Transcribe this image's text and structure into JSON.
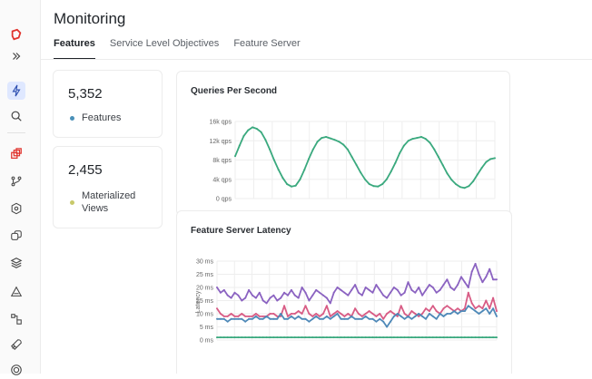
{
  "page": {
    "title": "Monitoring"
  },
  "tabs": [
    {
      "label": "Features",
      "active": true
    },
    {
      "label": "Service Level Objectives",
      "active": false
    },
    {
      "label": "Feature Server",
      "active": false
    }
  ],
  "sidebar": {
    "icons": [
      "logo-icon",
      "expand-icon",
      "lightning-icon",
      "search-icon",
      "feature-views-icon",
      "branch-icon",
      "settings-hex-icon",
      "duplicate-icon",
      "layers-icon",
      "triangle-icon",
      "graph-icon",
      "rocket-icon",
      "target-icon"
    ]
  },
  "stats": [
    {
      "value": "5,352",
      "label": "Features",
      "color": "#4a90b8"
    },
    {
      "value": "2,455",
      "label": "Materialized Views",
      "color": "#c8c96a"
    }
  ],
  "colors": {
    "green": "#3aa97e",
    "purple": "#8b63c1",
    "pink": "#d85c85",
    "blue": "#4f89b8"
  },
  "chart_data": [
    {
      "type": "line",
      "title": "Queries Per Second",
      "ylim": [
        0,
        16000
      ],
      "yticks": [
        "0 qps",
        "4k qps",
        "8k qps",
        "12k qps",
        "16k qps"
      ],
      "ytick_values": [
        0,
        4000,
        8000,
        12000,
        16000
      ],
      "x": [
        0,
        1,
        2,
        3,
        4,
        5,
        6,
        7,
        8,
        9,
        10,
        11,
        12,
        13,
        14,
        15,
        16,
        17,
        18,
        19,
        20,
        21,
        22,
        23,
        24,
        25,
        26,
        27,
        28,
        29,
        30,
        31,
        32,
        33,
        34,
        35,
        36,
        37,
        38,
        39,
        40,
        41,
        42,
        43,
        44,
        45,
        46,
        47,
        48,
        49,
        50,
        51,
        52,
        53,
        54,
        55,
        56,
        57,
        58,
        59,
        60
      ],
      "series": [
        {
          "values": [
            8800,
            11000,
            13000,
            14200,
            14800,
            14500,
            13800,
            12200,
            10200,
            8000,
            6000,
            4300,
            3000,
            2500,
            2700,
            4000,
            6000,
            8200,
            10200,
            11800,
            12600,
            12800,
            12500,
            12200,
            11800,
            11200,
            10200,
            8600,
            7000,
            5400,
            4000,
            3000,
            2600,
            2500,
            3000,
            4000,
            5600,
            7400,
            9400,
            11000,
            12000,
            12400,
            12600,
            12800,
            12400,
            11600,
            10200,
            8600,
            6900,
            5200,
            3900,
            3000,
            2400,
            2200,
            2600,
            3600,
            5000,
            6400,
            7600,
            8200,
            8400
          ]
        }
      ]
    },
    {
      "type": "line",
      "title": "Feature Server Latency",
      "ylabel": "Latency",
      "ylim": [
        0,
        30
      ],
      "yticks": [
        "0 ms",
        "5 ms",
        "10 ms",
        "15 ms",
        "20 ms",
        "25 ms",
        "30 ms"
      ],
      "ytick_values": [
        0,
        5,
        10,
        15,
        20,
        25,
        30
      ],
      "x": [
        0,
        1,
        2,
        3,
        4,
        5,
        6,
        7,
        8,
        9,
        10,
        11,
        12,
        13,
        14,
        15,
        16,
        17,
        18,
        19,
        20,
        21,
        22,
        23,
        24,
        25,
        26,
        27,
        28,
        29,
        30,
        31,
        32,
        33,
        34,
        35,
        36,
        37,
        38,
        39,
        40,
        41,
        42,
        43,
        44,
        45,
        46,
        47,
        48,
        49,
        50,
        51,
        52,
        53,
        54,
        55,
        56,
        57,
        58,
        59,
        60,
        61,
        62,
        63,
        64,
        65,
        66,
        67,
        68,
        69,
        70,
        71,
        72,
        73,
        74,
        75,
        76,
        77,
        78,
        79
      ],
      "series": [
        {
          "color": "#8b63c1",
          "values": [
            20,
            18,
            19,
            17,
            16,
            18,
            17,
            15,
            16,
            19,
            17,
            16,
            18,
            15,
            14,
            16,
            17,
            15,
            16,
            18,
            17,
            19,
            17,
            16,
            20,
            18,
            15,
            17,
            19,
            18,
            17,
            16,
            14,
            18,
            20,
            19,
            18,
            17,
            19,
            21,
            18,
            17,
            20,
            19,
            18,
            21,
            19,
            17,
            16,
            18,
            20,
            19,
            17,
            18,
            22,
            19,
            18,
            20,
            17,
            19,
            21,
            20,
            18,
            19,
            21,
            23,
            20,
            19,
            21,
            24,
            22,
            20,
            26,
            29,
            25,
            22,
            24,
            27,
            23,
            23
          ]
        },
        {
          "color": "#d85c85",
          "values": [
            12,
            10,
            9,
            9,
            10,
            9,
            9,
            10,
            9,
            9,
            9,
            10,
            9,
            9,
            9,
            10,
            10,
            9,
            9,
            13,
            9,
            10,
            10,
            11,
            10,
            13,
            10,
            9,
            10,
            9,
            10,
            13,
            9,
            10,
            11,
            10,
            9,
            10,
            9,
            12,
            10,
            9,
            10,
            11,
            10,
            9,
            10,
            8,
            10,
            11,
            10,
            9,
            13,
            10,
            9,
            11,
            10,
            9,
            10,
            12,
            11,
            13,
            11,
            10,
            12,
            13,
            12,
            11,
            12,
            11,
            12,
            18,
            14,
            12,
            13,
            12,
            15,
            12,
            16,
            11
          ]
        },
        {
          "color": "#4f89b8",
          "values": [
            8,
            8,
            8,
            7,
            8,
            8,
            8,
            8,
            7,
            8,
            8,
            9,
            8,
            8,
            9,
            8,
            8,
            8,
            10,
            8,
            8,
            9,
            8,
            9,
            8,
            8,
            7,
            8,
            9,
            8,
            8,
            9,
            8,
            9,
            10,
            8,
            8,
            8,
            9,
            8,
            8,
            8,
            9,
            8,
            8,
            7,
            8,
            7,
            5,
            7,
            9,
            10,
            9,
            8,
            9,
            8,
            9,
            10,
            9,
            8,
            10,
            9,
            8,
            10,
            9,
            10,
            10,
            11,
            10,
            11,
            11,
            13,
            12,
            11,
            10,
            11,
            12,
            10,
            12,
            9
          ]
        },
        {
          "color": "#3aa97e",
          "values": [
            1,
            1,
            1,
            1,
            1,
            1,
            1,
            1,
            1,
            1,
            1,
            1,
            1,
            1,
            1,
            1,
            1,
            1,
            1,
            1,
            1,
            1,
            1,
            1,
            1,
            1,
            1,
            1,
            1,
            1,
            1,
            1,
            1,
            1,
            1,
            1,
            1,
            1,
            1,
            1,
            1,
            1,
            1,
            1,
            1,
            1,
            1,
            1,
            1,
            1,
            1,
            1,
            1,
            1,
            1,
            1,
            1,
            1,
            1,
            1,
            1,
            1,
            1,
            1,
            1,
            1,
            1,
            1,
            1,
            1,
            1,
            1,
            1,
            1,
            1,
            1,
            1,
            1,
            1,
            1
          ]
        }
      ]
    }
  ]
}
